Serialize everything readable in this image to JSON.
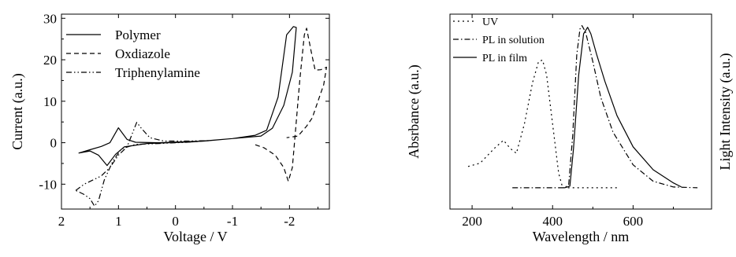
{
  "chart_data": [
    {
      "type": "line",
      "xlabel": "Voltage / V",
      "ylabel": "Current (a.u.)",
      "xlim": [
        2,
        -2.7
      ],
      "ylim": [
        -16,
        31
      ],
      "x_ticks": [
        2,
        1,
        0,
        -1,
        -2
      ],
      "y_ticks": [
        -10,
        0,
        10,
        20,
        30
      ],
      "x_tick_labels": [
        "2",
        "1",
        "0",
        "-1",
        "-2"
      ],
      "y_tick_labels": [
        "-10",
        "0",
        "10",
        "20",
        "30"
      ],
      "legend": "top-left",
      "series": [
        {
          "name": "Polymer",
          "style": "solid",
          "points": [
            [
              1.7,
              -2.5
            ],
            [
              1.5,
              -1.7
            ],
            [
              1.3,
              -0.9
            ],
            [
              1.15,
              0
            ],
            [
              1.0,
              3.6
            ],
            [
              0.85,
              0.8
            ],
            [
              0.7,
              0.1
            ],
            [
              0.3,
              0
            ],
            [
              -0.5,
              0.4
            ],
            [
              -1.0,
              1.0
            ],
            [
              -1.4,
              1.8
            ],
            [
              -1.6,
              3
            ],
            [
              -1.8,
              11
            ],
            [
              -1.95,
              26
            ],
            [
              -2.07,
              28
            ],
            [
              -2.12,
              27.8
            ],
            [
              -2.05,
              17
            ],
            [
              -1.9,
              9
            ],
            [
              -1.7,
              3.5
            ],
            [
              -1.5,
              1.6
            ],
            [
              -1.0,
              1.0
            ],
            [
              -0.3,
              0.2
            ],
            [
              0.5,
              -0.2
            ],
            [
              0.9,
              -1.0
            ],
            [
              1.05,
              -2.8
            ],
            [
              1.2,
              -5.5
            ],
            [
              1.35,
              -3.0
            ],
            [
              1.5,
              -2.0
            ],
            [
              1.7,
              -2.5
            ]
          ]
        },
        {
          "name": "Oxdiazole",
          "style": "dashed",
          "points": [
            [
              -1.4,
              -0.5
            ],
            [
              -1.55,
              -1.2
            ],
            [
              -1.75,
              -3
            ],
            [
              -1.9,
              -6
            ],
            [
              -1.98,
              -9.3
            ],
            [
              -2.05,
              -6
            ],
            [
              -2.1,
              2
            ],
            [
              -2.18,
              15
            ],
            [
              -2.26,
              26
            ],
            [
              -2.3,
              27.6
            ],
            [
              -2.38,
              22
            ],
            [
              -2.45,
              17.5
            ],
            [
              -2.55,
              17.6
            ],
            [
              -2.65,
              18.2
            ],
            [
              -2.6,
              14
            ],
            [
              -2.5,
              10
            ],
            [
              -2.4,
              6
            ],
            [
              -2.3,
              4
            ],
            [
              -2.15,
              1.6
            ],
            [
              -1.95,
              1.2
            ]
          ]
        },
        {
          "name": "Triphenylamine",
          "style": "dashdotdot",
          "points": [
            [
              1.75,
              -11.5
            ],
            [
              1.6,
              -10
            ],
            [
              1.45,
              -9
            ],
            [
              1.3,
              -8
            ],
            [
              1.15,
              -6
            ],
            [
              1.0,
              -3
            ],
            [
              0.85,
              -1
            ],
            [
              0.72,
              3.5
            ],
            [
              0.68,
              4.9
            ],
            [
              0.6,
              3.5
            ],
            [
              0.45,
              1.2
            ],
            [
              0.2,
              0.4
            ],
            [
              -0.2,
              0.4
            ],
            [
              -0.6,
              0.5
            ],
            [
              -0.2,
              0.1
            ],
            [
              0.3,
              -0.2
            ],
            [
              0.7,
              -0.4
            ],
            [
              0.95,
              -1.5
            ],
            [
              1.1,
              -4.5
            ],
            [
              1.25,
              -9
            ],
            [
              1.35,
              -14
            ],
            [
              1.42,
              -15.3
            ],
            [
              1.5,
              -13.5
            ],
            [
              1.6,
              -12.5
            ],
            [
              1.75,
              -11.5
            ]
          ]
        }
      ]
    },
    {
      "type": "line",
      "xlabel": "Wavelength / nm",
      "ylabel": "Absrbance (a.u.)",
      "y2label": "Light Intensity (a.u.)",
      "xlim": [
        145,
        795
      ],
      "ylim": [
        -0.12,
        1.07
      ],
      "x_ticks": [
        200,
        400,
        600
      ],
      "x_tick_labels": [
        "200",
        "400",
        "600"
      ],
      "legend": "top-left",
      "series": [
        {
          "name": "UV",
          "style": "dotted",
          "points": [
            [
              190,
              0.14
            ],
            [
              220,
              0.16
            ],
            [
              255,
              0.25
            ],
            [
              278,
              0.3
            ],
            [
              295,
              0.25
            ],
            [
              310,
              0.22
            ],
            [
              330,
              0.4
            ],
            [
              350,
              0.65
            ],
            [
              365,
              0.78
            ],
            [
              375,
              0.79
            ],
            [
              385,
              0.7
            ],
            [
              395,
              0.5
            ],
            [
              405,
              0.3
            ],
            [
              415,
              0.1
            ],
            [
              425,
              0.01
            ],
            [
              430,
              0.01
            ],
            [
              470,
              0.01
            ],
            [
              520,
              0.01
            ],
            [
              560,
              0.01
            ]
          ]
        },
        {
          "name": "PL in solution",
          "style": "dashdot",
          "points": [
            [
              300,
              0.01
            ],
            [
              400,
              0.01
            ],
            [
              430,
              0.01
            ],
            [
              440,
              0.03
            ],
            [
              450,
              0.33
            ],
            [
              460,
              0.82
            ],
            [
              468,
              0.98
            ],
            [
              473,
              1.0
            ],
            [
              482,
              0.96
            ],
            [
              500,
              0.78
            ],
            [
              520,
              0.56
            ],
            [
              550,
              0.35
            ],
            [
              600,
              0.15
            ],
            [
              650,
              0.05
            ],
            [
              700,
              0.015
            ],
            [
              760,
              0.01
            ]
          ]
        },
        {
          "name": "PL in film",
          "style": "solid",
          "points": [
            [
              430,
              0.01
            ],
            [
              443,
              0.02
            ],
            [
              452,
              0.25
            ],
            [
              465,
              0.7
            ],
            [
              477,
              0.95
            ],
            [
              487,
              0.99
            ],
            [
              495,
              0.95
            ],
            [
              510,
              0.82
            ],
            [
              530,
              0.66
            ],
            [
              560,
              0.45
            ],
            [
              600,
              0.26
            ],
            [
              650,
              0.12
            ],
            [
              700,
              0.04
            ],
            [
              720,
              0.015
            ]
          ]
        }
      ]
    }
  ]
}
